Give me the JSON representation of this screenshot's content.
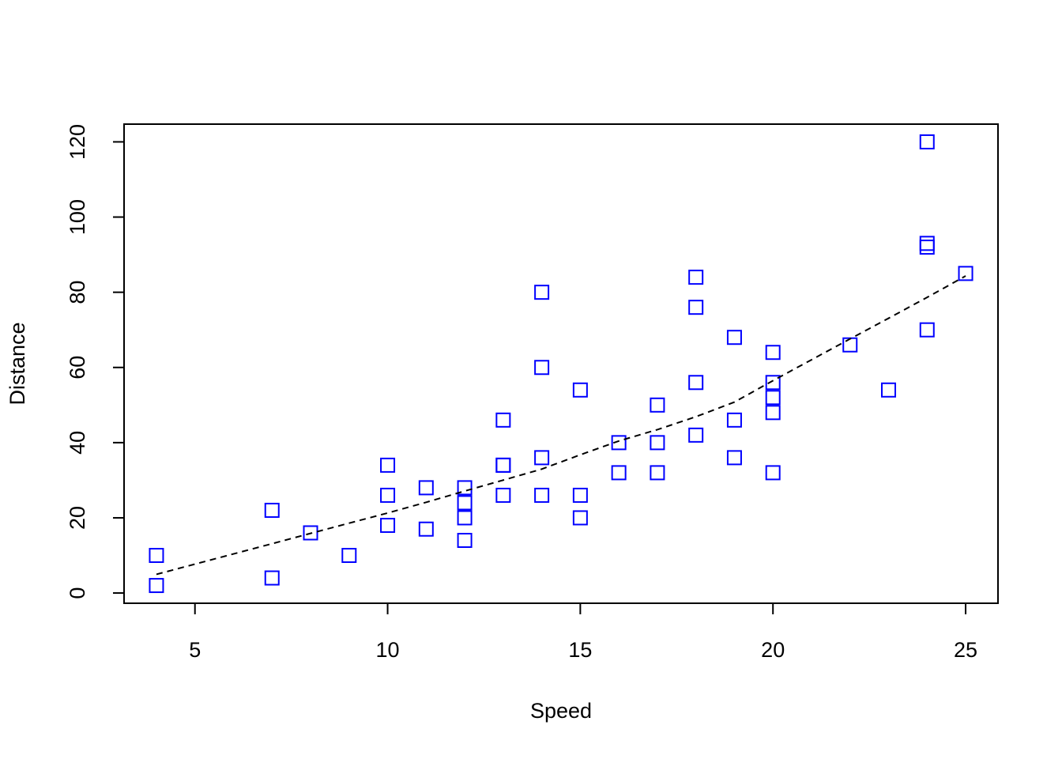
{
  "chart_data": {
    "type": "scatter",
    "x_label": "Speed",
    "y_label": "Distance",
    "x": [
      4,
      4,
      7,
      7,
      8,
      9,
      10,
      10,
      10,
      11,
      11,
      12,
      12,
      12,
      12,
      13,
      13,
      13,
      13,
      14,
      14,
      14,
      14,
      15,
      15,
      15,
      16,
      16,
      17,
      17,
      17,
      18,
      18,
      18,
      18,
      19,
      19,
      19,
      20,
      20,
      20,
      20,
      20,
      22,
      23,
      24,
      24,
      24,
      24,
      25
    ],
    "values": [
      2,
      10,
      4,
      22,
      16,
      10,
      18,
      26,
      34,
      17,
      28,
      14,
      20,
      24,
      28,
      26,
      34,
      34,
      46,
      26,
      36,
      60,
      80,
      20,
      26,
      54,
      32,
      40,
      32,
      40,
      50,
      42,
      56,
      76,
      84,
      36,
      46,
      68,
      32,
      48,
      52,
      56,
      64,
      66,
      54,
      70,
      92,
      93,
      120,
      85
    ],
    "color": "#0000ff",
    "trend": {
      "x": [
        4,
        7,
        8,
        9,
        10,
        11,
        12,
        13,
        14,
        15,
        16,
        17,
        18,
        19,
        20,
        22,
        23,
        24,
        25
      ],
      "values": [
        4.97,
        13.12,
        15.86,
        18.58,
        21.28,
        24.13,
        27.12,
        30.03,
        32.96,
        36.76,
        40.44,
        43.46,
        46.89,
        50.79,
        56.49,
        67.59,
        73.08,
        78.64,
        84.33
      ],
      "color": "#000000",
      "dashed": true
    },
    "xlim": [
      3.16,
      25.84
    ],
    "xticks": [
      5,
      10,
      15,
      20,
      25
    ],
    "ylim": [
      -2.72,
      124.72
    ],
    "yticks": [
      0,
      20,
      40,
      60,
      80,
      100,
      120
    ]
  }
}
